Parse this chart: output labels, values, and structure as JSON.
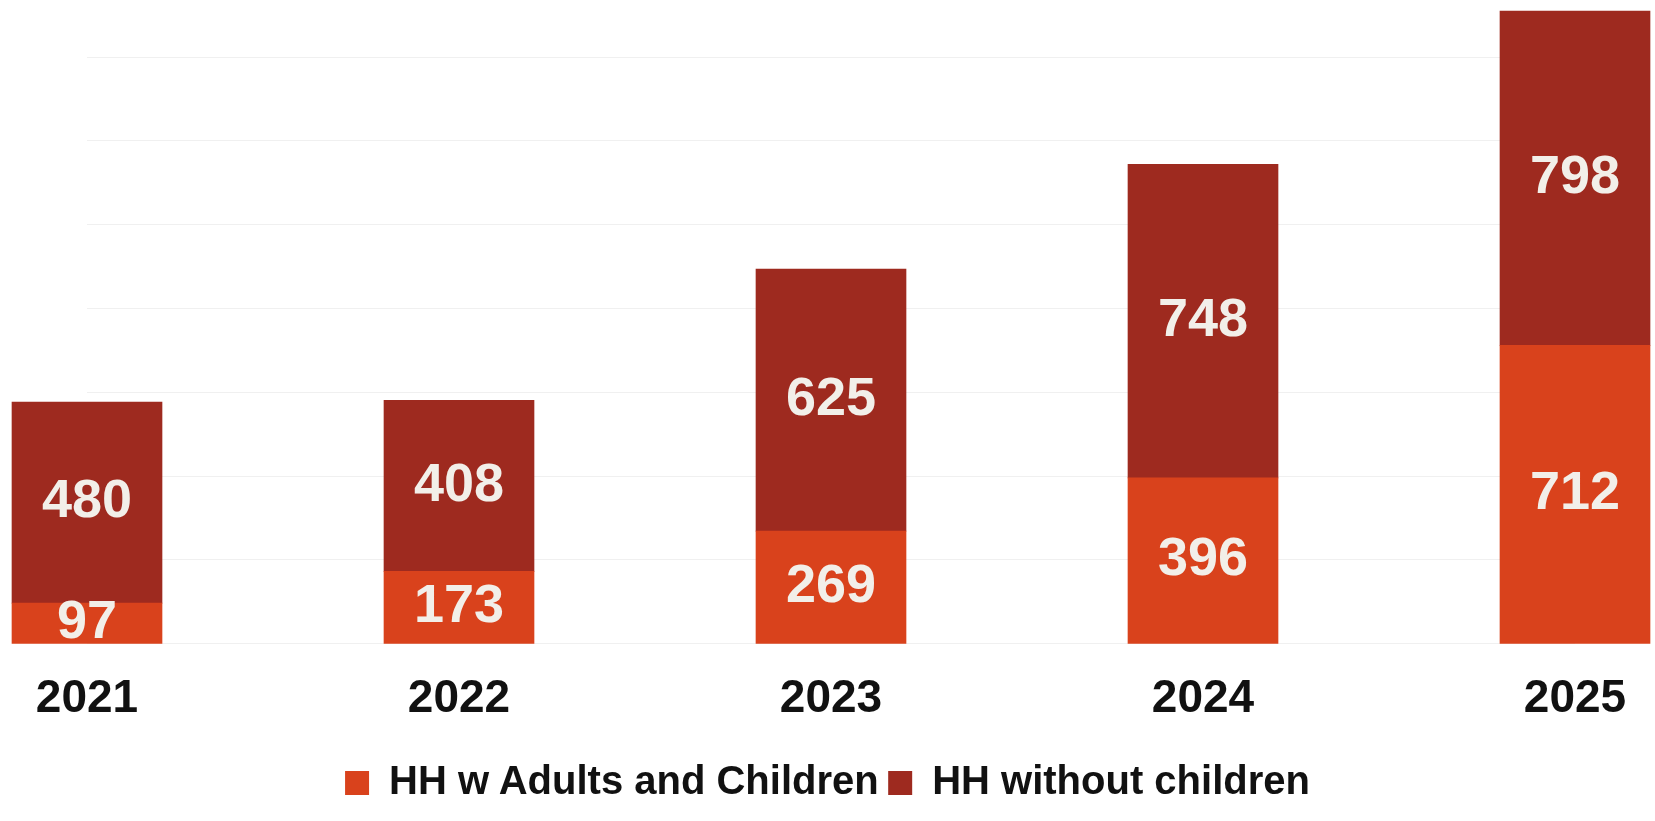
{
  "chart_data": {
    "type": "bar",
    "stacked": true,
    "categories": [
      "2021",
      "2022",
      "2023",
      "2024",
      "2025"
    ],
    "series": [
      {
        "name": "HH w Adults and Children",
        "color": "#d9421c",
        "values": [
          97,
          173,
          269,
          396,
          712
        ]
      },
      {
        "name": "HH without children",
        "color": "#9e2a1f",
        "values": [
          480,
          408,
          625,
          748,
          798
        ]
      }
    ],
    "yticks": [
      {
        "value": 0,
        "label": null
      },
      {
        "value": 200,
        "label": null
      },
      {
        "value": 400,
        "label": null
      },
      {
        "value": 600,
        "label": null
      },
      {
        "value": 800,
        "label": null
      },
      {
        "value": 1000,
        "label": null
      },
      {
        "value": 1200,
        "label": null
      },
      {
        "value": 1400,
        "label": null
      }
    ],
    "grid": "y",
    "tick_labels": "x",
    "data_labels": true,
    "legend": "bottom"
  }
}
